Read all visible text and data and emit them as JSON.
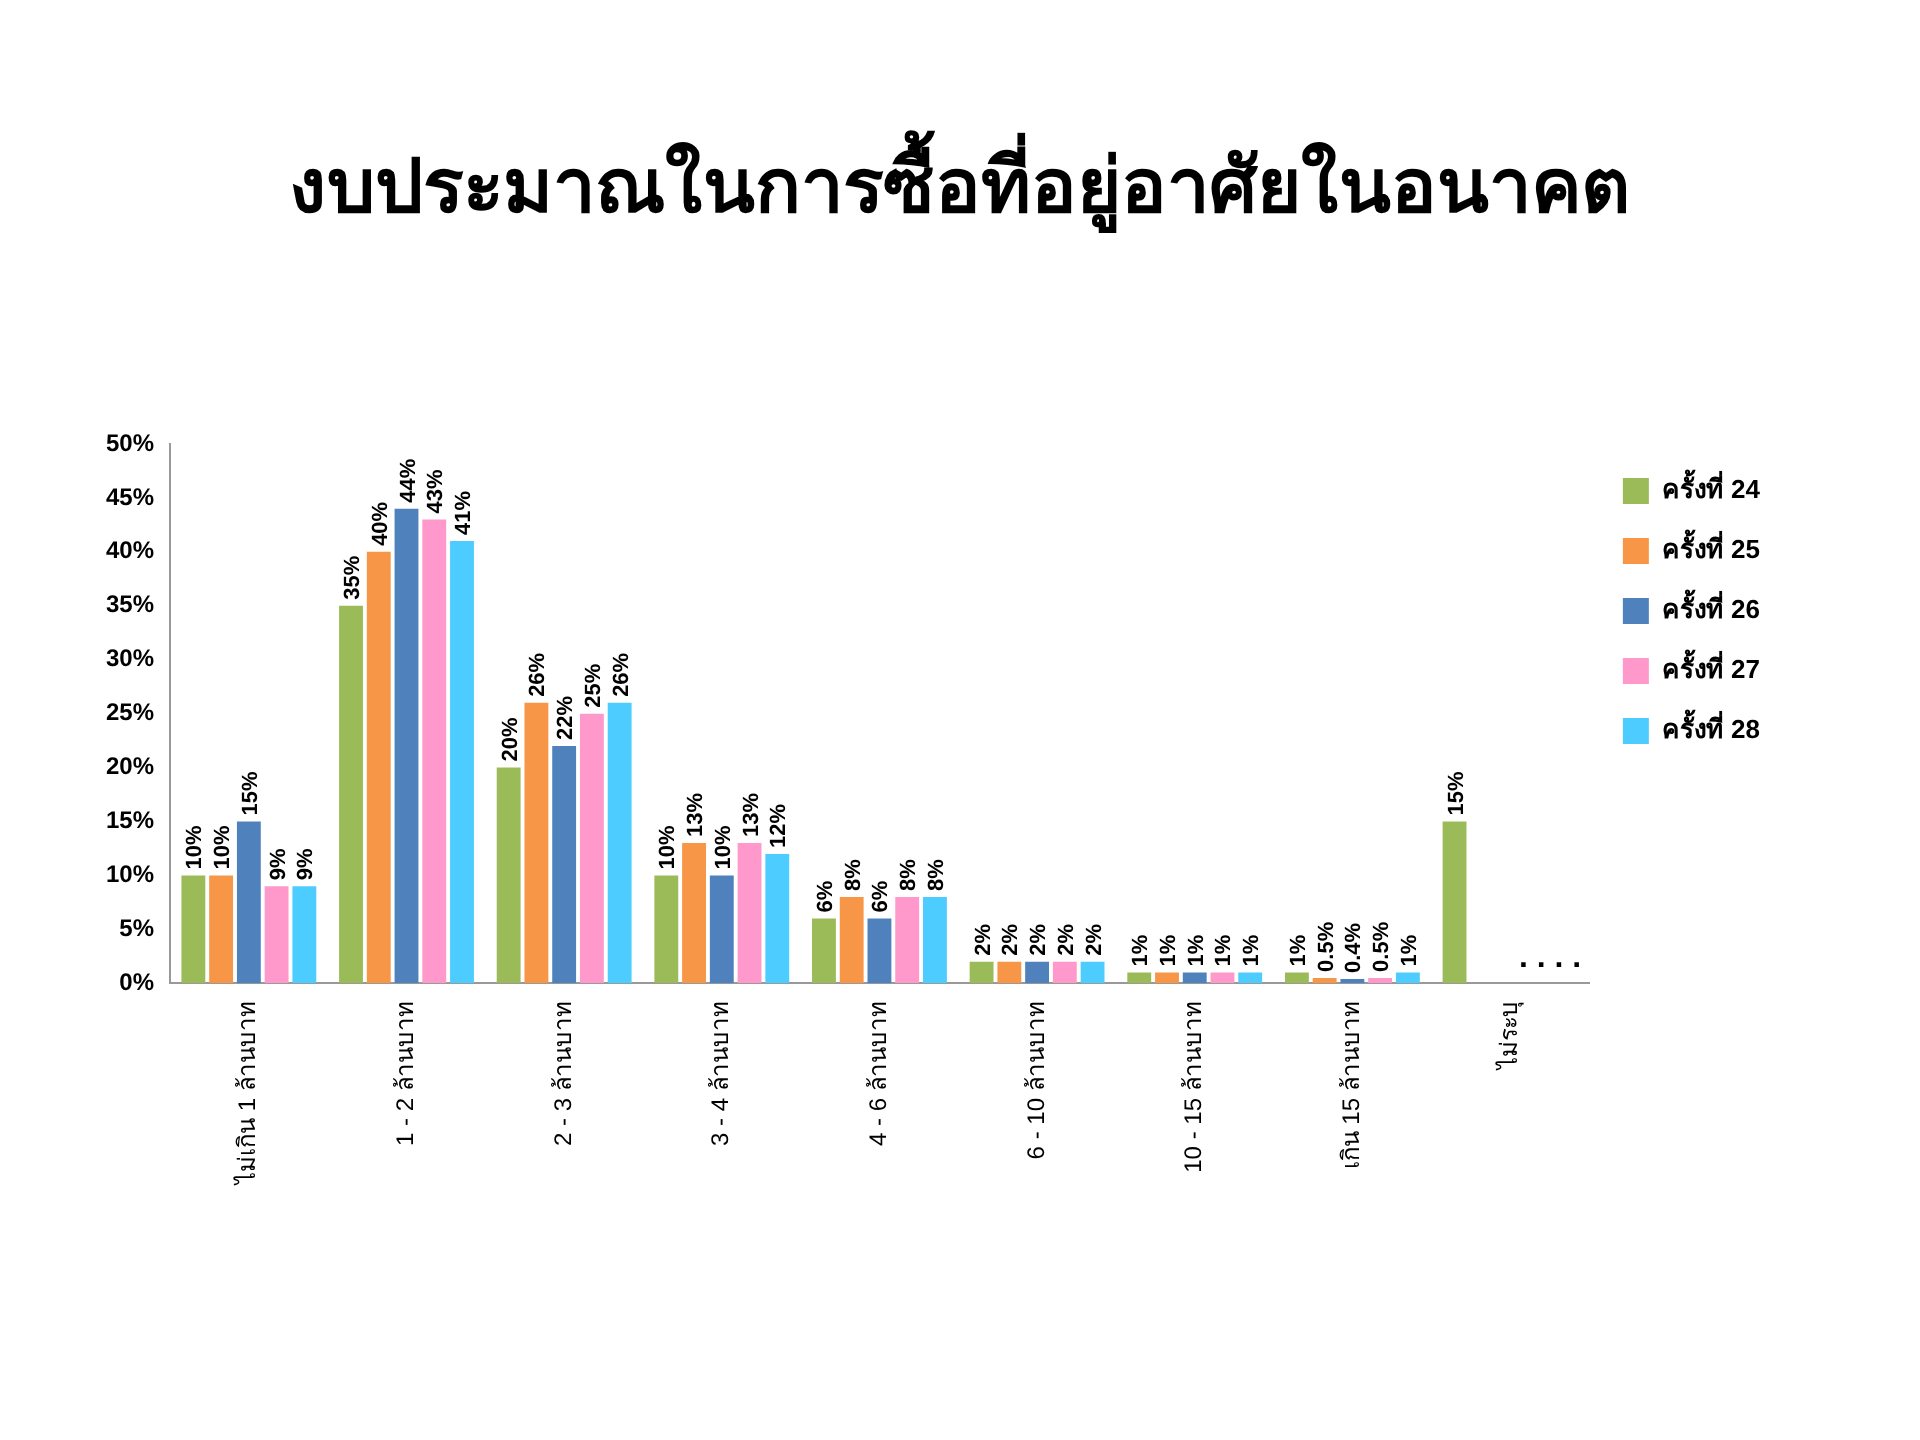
{
  "chart_data": {
    "type": "bar",
    "title": "งบประมาณในการซื้อที่อยู่อาศัยในอนาคต",
    "categories": [
      "ไม่เกิน 1 ล้านบาท",
      "1 - 2 ล้านบาท",
      "2 - 3 ล้านบาท",
      "3 - 4 ล้านบาท",
      "4 - 6 ล้านบาท",
      "6 - 10 ล้านบาท",
      "10 - 15 ล้านบาท",
      "เกิน 15 ล้านบาท",
      "ไม่ระบุ"
    ],
    "series": [
      {
        "name": "ครั้งที่ 24",
        "color": "#9bbb59",
        "values": [
          10,
          35,
          20,
          10,
          6,
          2,
          1,
          1,
          15
        ],
        "value_labels": [
          "10%",
          "35%",
          "20%",
          "10%",
          "6%",
          "2%",
          "1%",
          "1%",
          "15%"
        ]
      },
      {
        "name": "ครั้งที่ 25",
        "color": "#f79646",
        "values": [
          10,
          40,
          26,
          13,
          8,
          2,
          1,
          0.5,
          null
        ],
        "value_labels": [
          "10%",
          "40%",
          "26%",
          "13%",
          "8%",
          "2%",
          "1%",
          "0.5%",
          null
        ]
      },
      {
        "name": "ครั้งที่ 26",
        "color": "#4f81bd",
        "values": [
          15,
          44,
          22,
          10,
          6,
          2,
          1,
          0.4,
          null
        ],
        "value_labels": [
          "15%",
          "44%",
          "22%",
          "10%",
          "6%",
          "2%",
          "1%",
          "0.4%",
          null
        ]
      },
      {
        "name": "ครั้งที่ 27",
        "color": "#ff99cc",
        "values": [
          9,
          43,
          25,
          13,
          8,
          2,
          1,
          0.5,
          null
        ],
        "value_labels": [
          "9%",
          "43%",
          "25%",
          "13%",
          "8%",
          "2%",
          "1%",
          "0.5%",
          null
        ]
      },
      {
        "name": "ครั้งที่ 28",
        "color": "#4dccff",
        "values": [
          9,
          41,
          26,
          12,
          8,
          2,
          1,
          1,
          null
        ],
        "value_labels": [
          "9%",
          "41%",
          "26%",
          "12%",
          "8%",
          "2%",
          "1%",
          "1%",
          null
        ]
      }
    ],
    "ylim": [
      0,
      50
    ],
    "yticks": [
      {
        "value": 0,
        "label": "0%"
      },
      {
        "value": 5,
        "label": "5%"
      },
      {
        "value": 10,
        "label": "10%"
      },
      {
        "value": 15,
        "label": "15%"
      },
      {
        "value": 20,
        "label": "20%"
      },
      {
        "value": 25,
        "label": "25%"
      },
      {
        "value": 30,
        "label": "30%"
      },
      {
        "value": 35,
        "label": "35%"
      },
      {
        "value": 40,
        "label": "40%"
      },
      {
        "value": 45,
        "label": "45%"
      },
      {
        "value": 50,
        "label": "50%"
      }
    ],
    "annotations": [
      ". . . ."
    ],
    "grid": false,
    "legend": "top right"
  }
}
